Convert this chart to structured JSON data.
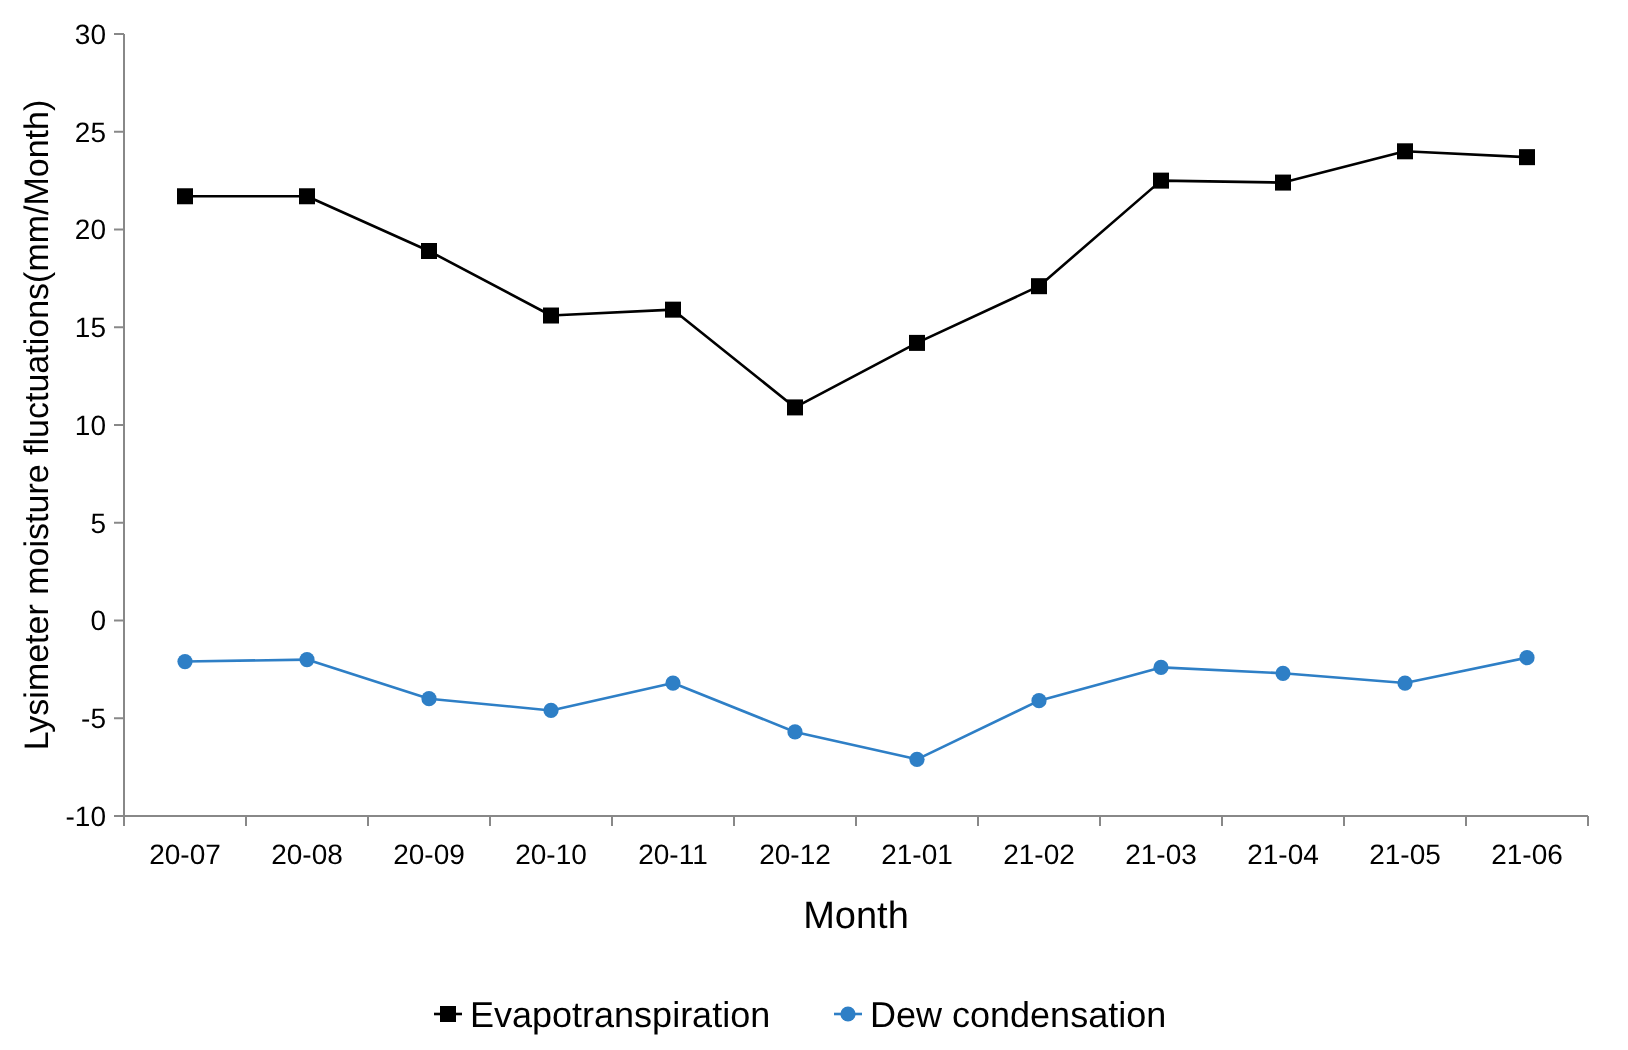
{
  "chart_data": {
    "type": "line",
    "xlabel": "Month",
    "ylabel": "Lysimeter  moisture fluctuations(mm/Month)",
    "categories": [
      "20-07",
      "20-08",
      "20-09",
      "20-10",
      "20-11",
      "20-12",
      "21-01",
      "21-02",
      "21-03",
      "21-04",
      "21-05",
      "21-06"
    ],
    "series": [
      {
        "name": "Evapotranspiration",
        "color": "#000000",
        "marker": "square",
        "values": [
          21.7,
          21.7,
          18.9,
          15.6,
          15.9,
          10.9,
          14.2,
          17.1,
          22.5,
          22.4,
          24.0,
          23.7
        ]
      },
      {
        "name": "Dew condensation",
        "color": "#2e7fc6",
        "marker": "circle",
        "values": [
          -2.1,
          -2.0,
          -4.0,
          -4.6,
          -3.2,
          -5.7,
          -7.1,
          -4.1,
          -2.4,
          -2.7,
          -3.2,
          -1.9
        ]
      }
    ],
    "ylim": [
      -10,
      30
    ],
    "yticks": [
      -10,
      -5,
      0,
      5,
      10,
      15,
      20,
      25,
      30
    ],
    "grid": false,
    "legend": "bottom",
    "line_style": "solid"
  }
}
